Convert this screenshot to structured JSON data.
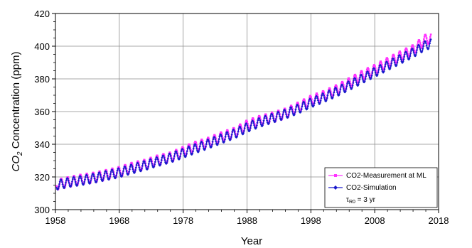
{
  "chart_data": {
    "type": "line",
    "xlabel": "Year",
    "ylabel_parts": {
      "subject": "CO",
      "subscript": "2",
      "rest": " Concentration (ppm)"
    },
    "xlim": [
      1958,
      2018
    ],
    "ylim": [
      300,
      420
    ],
    "x_ticks": [
      1958,
      1968,
      1978,
      1988,
      1998,
      2008,
      2018
    ],
    "y_ticks": [
      300,
      320,
      340,
      360,
      380,
      400,
      420
    ],
    "grid": true,
    "legend_position": "bottom-right",
    "legend_note": {
      "tau": "τ",
      "sub": "R0",
      "rest": " = 3 yr"
    },
    "seasonal_amplitude": 3,
    "series": [
      {
        "name": "CO2-Measurement at ML",
        "color": "#ff33ff",
        "marker": "square",
        "x": [
          1958.2,
          1960,
          1962,
          1964,
          1966,
          1968,
          1970,
          1972,
          1974,
          1976,
          1978,
          1980,
          1982,
          1984,
          1986,
          1988,
          1990,
          1992,
          1994,
          1996,
          1998,
          2000,
          2002,
          2004,
          2006,
          2008,
          2010,
          2012,
          2014,
          2016,
          2016.8
        ],
        "y": [
          315.3,
          316.9,
          318.4,
          319.6,
          321.3,
          323.1,
          325.7,
          327.5,
          330.2,
          332.0,
          335.4,
          338.7,
          341.1,
          344.4,
          347.0,
          351.6,
          354.4,
          356.4,
          358.9,
          362.6,
          366.7,
          369.6,
          373.2,
          377.5,
          381.9,
          385.6,
          389.9,
          393.9,
          397.7,
          404.2,
          404.8
        ]
      },
      {
        "name": "CO2-Simulation",
        "color": "#1a1acc",
        "marker": "diamond",
        "x": [
          1958.2,
          1960,
          1962,
          1964,
          1966,
          1968,
          1970,
          1972,
          1974,
          1976,
          1978,
          1980,
          1982,
          1984,
          1986,
          1988,
          1990,
          1992,
          1994,
          1996,
          1998,
          2000,
          2002,
          2004,
          2006,
          2008,
          2010,
          2012,
          2014,
          2016,
          2016.8
        ],
        "y": [
          315.0,
          316.6,
          317.8,
          319.2,
          320.9,
          322.6,
          324.9,
          327.0,
          329.4,
          331.6,
          334.5,
          337.5,
          340.3,
          343.4,
          346.3,
          350.2,
          353.4,
          356.0,
          358.5,
          361.6,
          365.3,
          368.5,
          372.0,
          375.9,
          380.0,
          384.0,
          388.0,
          392.0,
          396.0,
          400.6,
          401.6
        ]
      }
    ]
  }
}
